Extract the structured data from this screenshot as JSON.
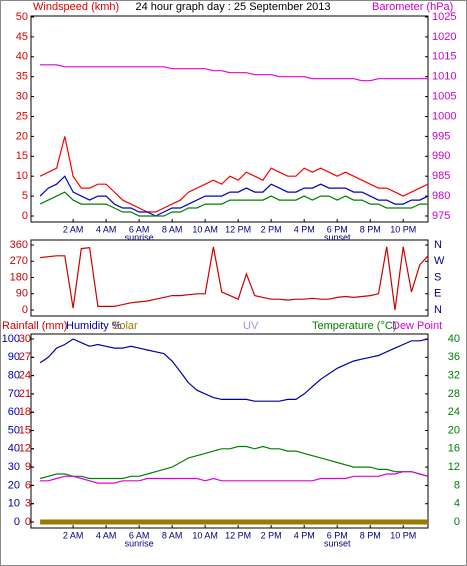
{
  "chart_data": [
    {
      "type": "line",
      "title": "24 hour graph day : 25 September 2013",
      "ylabel": "Windspeed (kmh)",
      "y2label": "Barometer (hPa)",
      "ycolor": "#e00000",
      "y2color": "#cc00cc",
      "x": [
        0,
        0.5,
        1,
        1.5,
        2,
        2.5,
        3,
        3.5,
        4,
        4.5,
        5,
        5.5,
        6,
        6.5,
        7,
        7.5,
        8,
        8.5,
        9,
        9.5,
        10,
        10.5,
        11,
        11.5,
        12,
        12.5,
        13,
        13.5,
        14,
        14.5,
        15,
        15.5,
        16,
        16.5,
        17,
        17.5,
        18,
        18.5,
        19,
        19.5,
        20,
        20.5,
        21,
        21.5,
        22,
        22.5,
        23,
        23.5
      ],
      "xlim": [
        -0.55,
        23.5
      ],
      "xticks": [
        {
          "value": 2,
          "label": "2 AM"
        },
        {
          "value": 4,
          "label": "4 AM"
        },
        {
          "value": 6,
          "label": "6 AM"
        },
        {
          "value": 8,
          "label": "8 AM"
        },
        {
          "value": 10,
          "label": "10 AM"
        },
        {
          "value": 12,
          "label": "12 PM"
        },
        {
          "value": 14,
          "label": "2 PM"
        },
        {
          "value": 16,
          "label": "4 PM"
        },
        {
          "value": 18,
          "label": "6 PM"
        },
        {
          "value": 20,
          "label": "8 PM"
        },
        {
          "value": 22,
          "label": "10 PM"
        }
      ],
      "annotations": [
        {
          "text": "sunrise",
          "x": 6
        },
        {
          "text": "sunset",
          "x": 18
        }
      ],
      "ylim": [
        0,
        50
      ],
      "yticks": [
        0,
        5,
        10,
        15,
        20,
        25,
        30,
        35,
        40,
        45,
        50
      ],
      "y2lim": [
        975,
        1025
      ],
      "y2ticks": [
        975,
        980,
        985,
        990,
        995,
        1000,
        1005,
        1010,
        1015,
        1020,
        1025
      ],
      "series": [
        {
          "color": "#ff0000",
          "values": [
            10,
            11,
            12,
            20,
            10,
            7,
            7,
            8,
            8,
            6,
            4,
            3,
            2,
            1,
            1,
            2,
            3,
            4,
            6,
            7,
            8,
            9,
            8,
            10,
            9,
            11,
            10,
            9,
            12,
            11,
            10,
            10,
            12,
            11,
            12,
            11,
            10,
            11,
            10,
            9,
            8,
            7,
            7,
            6,
            5,
            6,
            7,
            8
          ]
        },
        {
          "color": "#0000cc",
          "values": [
            5,
            7,
            8,
            10,
            6,
            5,
            4,
            5,
            5,
            3,
            2,
            2,
            1,
            1,
            0,
            1,
            2,
            2,
            3,
            4,
            5,
            5,
            5,
            6,
            6,
            7,
            6,
            6,
            8,
            7,
            6,
            6,
            7,
            7,
            8,
            7,
            7,
            7,
            6,
            6,
            5,
            4,
            4,
            3,
            3,
            4,
            4,
            5
          ]
        },
        {
          "color": "#008000",
          "values": [
            3,
            4,
            5,
            6,
            4,
            3,
            3,
            3,
            3,
            2,
            1,
            1,
            0,
            0,
            0,
            0,
            1,
            1,
            2,
            2,
            3,
            3,
            3,
            4,
            4,
            4,
            4,
            4,
            5,
            4,
            4,
            4,
            5,
            4,
            5,
            5,
            4,
            5,
            4,
            4,
            3,
            3,
            2,
            2,
            2,
            2,
            3,
            3
          ]
        },
        {
          "color": "#dd00dd",
          "axis": "y2",
          "values": [
            1013,
            1013,
            1013,
            1012.5,
            1012.5,
            1012.5,
            1012.5,
            1012.5,
            1012.5,
            1012.5,
            1012.5,
            1012.5,
            1012.5,
            1012.5,
            1012.5,
            1012.5,
            1012,
            1012,
            1012,
            1012,
            1012,
            1011.5,
            1011.5,
            1011,
            1011,
            1011,
            1010.5,
            1010.5,
            1010.5,
            1010,
            1010,
            1010,
            1010,
            1009.5,
            1009.5,
            1009.5,
            1009.5,
            1009.5,
            1009.5,
            1009,
            1009,
            1009.5,
            1009.5,
            1009.5,
            1009.5,
            1009.5,
            1009.5,
            1009.5
          ]
        }
      ]
    },
    {
      "type": "line",
      "ycolor": "#cc0000",
      "y2color": "#000080",
      "x": [
        0,
        0.5,
        1,
        1.5,
        2,
        2.5,
        3,
        3.5,
        4,
        4.5,
        5,
        5.5,
        6,
        6.5,
        7,
        7.5,
        8,
        8.5,
        9,
        9.5,
        10,
        10.5,
        11,
        11.5,
        12,
        12.5,
        13,
        13.5,
        14,
        14.5,
        15,
        15.5,
        16,
        16.5,
        17,
        17.5,
        18,
        18.5,
        19,
        19.5,
        20,
        20.5,
        21,
        21.5,
        22,
        22.5,
        23,
        23.5
      ],
      "xlim": [
        -0.55,
        23.5
      ],
      "ylim": [
        0,
        360
      ],
      "yticks": [
        0,
        90,
        180,
        270,
        360
      ],
      "y2lim": [
        0,
        360
      ],
      "y2ticks": [
        {
          "value": 0,
          "label": "N"
        },
        {
          "value": 90,
          "label": "E"
        },
        {
          "value": 180,
          "label": "S"
        },
        {
          "value": 270,
          "label": "W"
        },
        {
          "value": 360,
          "label": "N"
        }
      ],
      "series": [
        {
          "color": "#cc0000",
          "values": [
            290,
            295,
            300,
            300,
            10,
            340,
            345,
            20,
            20,
            20,
            30,
            40,
            45,
            50,
            60,
            70,
            80,
            80,
            85,
            90,
            90,
            350,
            100,
            80,
            60,
            200,
            80,
            70,
            60,
            60,
            55,
            60,
            60,
            65,
            60,
            60,
            70,
            75,
            70,
            75,
            80,
            90,
            350,
            0,
            350,
            100,
            250,
            300
          ]
        }
      ]
    },
    {
      "type": "line",
      "y3label": "Rainfall (mm)",
      "uv_label": "UV",
      "ycolor": "#0000aa",
      "y2color": "#008000",
      "y3color": "#cc0000",
      "uv_color": "#9999ee",
      "x": [
        0,
        0.5,
        1,
        1.5,
        2,
        2.5,
        3,
        3.5,
        4,
        4.5,
        5,
        5.5,
        6,
        6.5,
        7,
        7.5,
        8,
        8.5,
        9,
        9.5,
        10,
        10.5,
        11,
        11.5,
        12,
        12.5,
        13,
        13.5,
        14,
        14.5,
        15,
        15.5,
        16,
        16.5,
        17,
        17.5,
        18,
        18.5,
        19,
        19.5,
        20,
        20.5,
        21,
        21.5,
        22,
        22.5,
        23,
        23.5
      ],
      "xlim": [
        -0.55,
        23.5
      ],
      "xticks": [
        {
          "value": 2,
          "label": "2 AM"
        },
        {
          "value": 4,
          "label": "4 AM"
        },
        {
          "value": 6,
          "label": "6 AM"
        },
        {
          "value": 8,
          "label": "8 AM"
        },
        {
          "value": 10,
          "label": "10 AM"
        },
        {
          "value": 12,
          "label": "12 PM"
        },
        {
          "value": 14,
          "label": "2 PM"
        },
        {
          "value": 16,
          "label": "4 PM"
        },
        {
          "value": 18,
          "label": "6 PM"
        },
        {
          "value": 20,
          "label": "8 PM"
        },
        {
          "value": 22,
          "label": "10 PM"
        }
      ],
      "annotations": [
        {
          "text": "sunrise",
          "x": 6
        },
        {
          "text": "sunset",
          "x": 18
        }
      ],
      "ylim": [
        0,
        100
      ],
      "yticks": [
        0,
        10,
        20,
        30,
        40,
        50,
        60,
        70,
        80,
        90,
        100
      ],
      "y3lim": [
        0,
        30
      ],
      "y3ticks": [
        0,
        3,
        6,
        9,
        12,
        15,
        18,
        21,
        24,
        27,
        30
      ],
      "y2lim": [
        0,
        40
      ],
      "y2ticks": [
        0,
        4,
        8,
        12,
        16,
        20,
        24,
        28,
        32,
        36,
        40
      ],
      "series": [
        {
          "name": "Humidity %",
          "color": "#0000aa",
          "values": [
            87,
            90,
            95,
            97,
            100,
            98,
            96,
            97,
            96,
            95,
            95,
            96,
            95,
            94,
            93,
            92,
            88,
            82,
            76,
            72,
            70,
            68,
            67,
            67,
            67,
            67,
            66,
            66,
            66,
            66,
            67,
            67,
            70,
            74,
            78,
            81,
            84,
            86,
            88,
            89,
            90,
            91,
            93,
            95,
            97,
            99,
            99,
            100
          ]
        },
        {
          "name": "Solar",
          "color": "#9a7a00",
          "width": 5,
          "values": [
            0,
            0,
            0,
            0,
            0,
            0,
            0,
            0,
            0,
            0,
            0,
            0,
            0,
            0,
            0,
            0,
            0,
            0,
            0,
            0,
            0,
            0,
            0,
            0,
            0,
            0,
            0,
            0,
            0,
            0,
            0,
            0,
            0,
            0,
            0,
            0,
            0,
            0,
            0,
            0,
            0,
            0,
            0,
            0,
            0,
            0,
            0,
            0
          ]
        },
        {
          "name": "Temperature (°C)",
          "color": "#008000",
          "axis": "y2",
          "values": [
            9.5,
            10,
            10.5,
            10.5,
            10,
            10,
            9.5,
            9.5,
            9.5,
            9.5,
            9.5,
            10,
            10,
            10.5,
            11,
            11.5,
            12,
            13,
            14,
            14.5,
            15,
            15.5,
            16,
            16,
            16.5,
            16.5,
            16,
            16.5,
            16,
            16,
            15.5,
            15.5,
            15,
            14.5,
            14,
            13.5,
            13,
            12.5,
            12,
            12,
            12,
            11.5,
            11.5,
            11,
            11,
            11,
            10.5,
            10
          ]
        },
        {
          "name": "Dew Point",
          "color": "#dd00dd",
          "axis": "y2",
          "values": [
            9,
            9,
            9.5,
            10,
            10,
            9.5,
            9,
            8.5,
            8.5,
            8.5,
            9,
            9,
            9,
            9.5,
            9.5,
            9.5,
            9.5,
            9.5,
            9.5,
            9.5,
            9,
            9.5,
            9,
            9,
            9,
            9,
            9,
            9,
            9,
            9,
            9,
            9,
            9,
            9,
            9.5,
            9.5,
            9.5,
            9.5,
            10,
            10,
            10,
            10,
            10.5,
            10.5,
            11,
            11,
            10.5,
            10
          ]
        }
      ]
    }
  ]
}
